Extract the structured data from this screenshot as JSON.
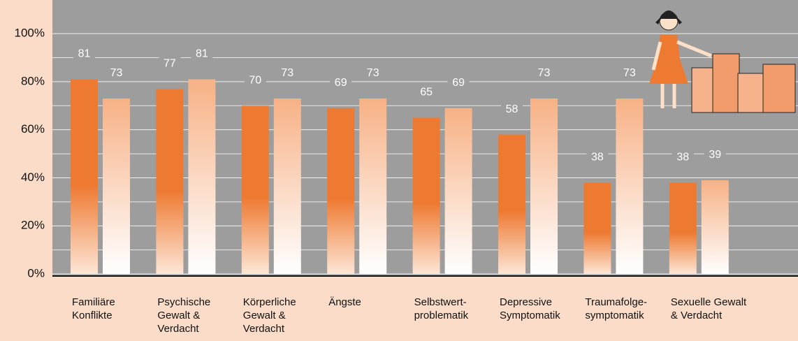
{
  "chart_data": {
    "type": "bar",
    "categories": [
      [
        "Familiäre",
        "Konflikte"
      ],
      [
        "Psychische",
        "Gewalt &",
        "Verdacht"
      ],
      [
        "Körperliche",
        "Gewalt &",
        "Verdacht"
      ],
      [
        "Ängste"
      ],
      [
        "Selbstwert-",
        "problematik"
      ],
      [
        "Depressive",
        "Symptomatik"
      ],
      [
        "Traumafolge-",
        "symptomatik"
      ],
      [
        "Sexuelle Gewalt",
        "& Verdacht"
      ]
    ],
    "series": [
      {
        "color": "#ee7a32",
        "values": [
          81,
          77,
          70,
          69,
          65,
          58,
          38,
          38
        ]
      },
      {
        "color": "#f8b68c",
        "values": [
          73,
          81,
          73,
          73,
          69,
          73,
          73,
          39
        ]
      }
    ],
    "ylim": [
      0,
      114
    ],
    "yticks": [
      {
        "value": 0,
        "label": "0%"
      },
      {
        "value": 20,
        "label": "20%"
      },
      {
        "value": 40,
        "label": "40%"
      },
      {
        "value": 60,
        "label": "60%"
      },
      {
        "value": 80,
        "label": "80%"
      },
      {
        "value": 100,
        "label": "100%"
      }
    ],
    "minor_yticks": [
      10,
      30,
      50,
      70,
      90
    ],
    "grid": true
  }
}
